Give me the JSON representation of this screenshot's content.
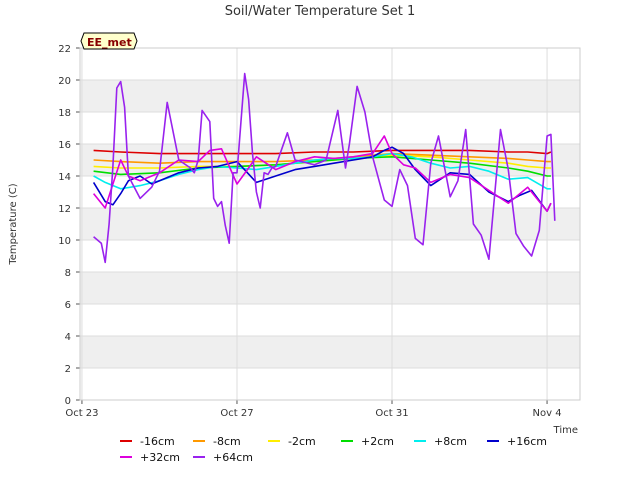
{
  "chart_data": {
    "type": "line",
    "title": "Soil/Water Temperature Set 1",
    "xlabel": "Time",
    "ylabel": "Temperature (C)",
    "ylim": [
      0,
      22
    ],
    "xlim": [
      -0.05,
      12.85
    ],
    "yticks": [
      0,
      2,
      4,
      6,
      8,
      10,
      12,
      14,
      16,
      18,
      20,
      22
    ],
    "xticks": [
      {
        "x": 0,
        "label": "Oct 23"
      },
      {
        "x": 4,
        "label": "Oct 27"
      },
      {
        "x": 8,
        "label": "Oct 31"
      },
      {
        "x": 12,
        "label": "Nov 4"
      }
    ],
    "grid": true,
    "background_bands": "alternating light gray",
    "legend_position": "bottom",
    "station_label": "EE_met",
    "series": [
      {
        "name": "-16cm",
        "color": "#dd0000",
        "x": [
          0.3,
          1.0,
          2.0,
          3.0,
          4.0,
          5.0,
          6.0,
          7.0,
          8.0,
          9.0,
          10.0,
          11.0,
          11.5,
          12.0,
          12.1
        ],
        "values": [
          15.6,
          15.5,
          15.4,
          15.4,
          15.4,
          15.4,
          15.5,
          15.5,
          15.6,
          15.6,
          15.6,
          15.5,
          15.5,
          15.4,
          15.5
        ]
      },
      {
        "name": "-8cm",
        "color": "#ff9900",
        "x": [
          0.3,
          1.0,
          2.0,
          3.0,
          4.0,
          5.0,
          6.0,
          7.0,
          8.0,
          9.0,
          10.0,
          11.0,
          11.5,
          12.0,
          12.1
        ],
        "values": [
          15.0,
          14.9,
          14.8,
          14.9,
          14.9,
          14.9,
          15.0,
          15.2,
          15.4,
          15.3,
          15.2,
          15.1,
          15.0,
          14.9,
          14.9
        ]
      },
      {
        "name": "-2cm",
        "color": "#ffee00",
        "x": [
          0.3,
          1.0,
          2.0,
          3.0,
          4.0,
          5.0,
          6.0,
          7.0,
          8.0,
          9.0,
          10.0,
          11.0,
          11.5,
          12.0,
          12.1
        ],
        "values": [
          14.6,
          14.5,
          14.5,
          14.6,
          14.6,
          14.7,
          14.9,
          15.1,
          15.3,
          15.2,
          15.0,
          14.8,
          14.6,
          14.5,
          14.5
        ]
      },
      {
        "name": "+2cm",
        "color": "#00dd00",
        "x": [
          0.3,
          1.0,
          2.0,
          3.0,
          4.0,
          5.0,
          6.0,
          7.0,
          8.0,
          9.0,
          10.0,
          11.0,
          11.5,
          12.0,
          12.1
        ],
        "values": [
          14.3,
          14.1,
          14.2,
          14.5,
          14.6,
          14.7,
          14.9,
          15.1,
          15.2,
          15.0,
          14.8,
          14.5,
          14.3,
          14.0,
          14.0
        ]
      },
      {
        "name": "+8cm",
        "color": "#00eeee",
        "x": [
          0.3,
          0.6,
          1.0,
          1.5,
          2.0,
          2.5,
          3.0,
          3.5,
          4.0,
          4.5,
          5.0,
          5.5,
          6.0,
          6.5,
          7.0,
          7.5,
          8.0,
          8.5,
          9.0,
          9.5,
          10.0,
          10.5,
          11.0,
          11.5,
          12.0,
          12.1
        ],
        "values": [
          14.0,
          13.6,
          13.2,
          13.4,
          13.7,
          14.1,
          14.4,
          14.6,
          14.5,
          14.4,
          14.6,
          14.8,
          15.0,
          15.1,
          15.1,
          15.2,
          15.4,
          15.2,
          14.8,
          14.5,
          14.6,
          14.3,
          13.8,
          13.9,
          13.2,
          13.2
        ]
      },
      {
        "name": "+16cm",
        "color": "#0000cc",
        "x": [
          0.3,
          0.6,
          0.8,
          1.0,
          1.2,
          1.5,
          1.8,
          2.0,
          2.5,
          3.0,
          3.5,
          4.0,
          4.5,
          5.0,
          5.5,
          6.0,
          6.5,
          7.0,
          7.5,
          7.8,
          8.0,
          8.3,
          8.6,
          9.0,
          9.5,
          10.0,
          10.5,
          11.0,
          11.3,
          11.6,
          12.0,
          12.1
        ],
        "values": [
          13.6,
          12.4,
          12.2,
          12.9,
          13.7,
          14.0,
          13.5,
          13.7,
          14.2,
          14.5,
          14.6,
          14.9,
          13.6,
          14.0,
          14.4,
          14.6,
          14.8,
          15.0,
          15.2,
          15.6,
          15.8,
          15.4,
          14.4,
          13.4,
          14.2,
          14.1,
          13.0,
          12.4,
          12.8,
          13.1,
          11.8,
          12.3
        ]
      },
      {
        "name": "+32cm",
        "color": "#dd00dd",
        "x": [
          0.3,
          0.6,
          0.8,
          1.0,
          1.2,
          1.5,
          1.8,
          2.0,
          2.5,
          3.0,
          3.3,
          3.6,
          4.0,
          4.3,
          4.5,
          5.0,
          5.5,
          6.0,
          6.5,
          7.0,
          7.5,
          7.8,
          8.0,
          8.3,
          8.6,
          9.0,
          9.5,
          10.0,
          10.5,
          11.0,
          11.5,
          12.0,
          12.1
        ],
        "values": [
          12.9,
          12.0,
          13.5,
          15.0,
          14.0,
          13.7,
          14.0,
          14.2,
          15.0,
          14.9,
          15.6,
          15.7,
          13.5,
          14.5,
          15.2,
          14.4,
          14.9,
          15.2,
          15.1,
          15.2,
          15.4,
          16.5,
          15.4,
          14.7,
          14.5,
          13.6,
          14.1,
          13.9,
          13.1,
          12.3,
          13.3,
          11.8,
          12.3
        ]
      },
      {
        "name": "+64cm",
        "color": "#9922ee",
        "x": [
          0.3,
          0.5,
          0.6,
          0.7,
          0.8,
          0.9,
          1.0,
          1.1,
          1.2,
          1.5,
          1.8,
          2.0,
          2.2,
          2.5,
          2.8,
          2.9,
          3.0,
          3.1,
          3.3,
          3.4,
          3.5,
          3.6,
          3.7,
          3.8,
          3.9,
          4.0,
          4.2,
          4.3,
          4.4,
          4.5,
          4.6,
          4.7,
          4.8,
          4.9,
          5.0,
          5.3,
          5.5,
          6.0,
          6.3,
          6.6,
          6.8,
          6.9,
          7.1,
          7.3,
          7.5,
          7.8,
          8.0,
          8.2,
          8.4,
          8.6,
          8.8,
          9.0,
          9.2,
          9.5,
          9.7,
          9.9,
          10.1,
          10.3,
          10.5,
          10.8,
          11.0,
          11.2,
          11.4,
          11.6,
          11.8,
          12.0,
          12.1,
          12.2
        ],
        "values": [
          10.2,
          9.8,
          8.6,
          11.0,
          14.6,
          19.5,
          19.9,
          18.3,
          14.0,
          12.6,
          13.3,
          14.3,
          18.6,
          15.0,
          14.5,
          14.2,
          15.0,
          18.1,
          17.4,
          12.6,
          12.1,
          12.4,
          10.9,
          9.8,
          14.2,
          14.2,
          20.4,
          18.8,
          15.4,
          13.0,
          12.0,
          14.2,
          14.1,
          14.5,
          14.6,
          16.7,
          15.0,
          14.7,
          15.0,
          18.1,
          14.5,
          16.0,
          19.6,
          18.0,
          15.2,
          12.5,
          12.1,
          14.4,
          13.4,
          10.1,
          9.7,
          14.8,
          16.5,
          12.7,
          13.7,
          16.9,
          11.0,
          10.3,
          8.8,
          16.9,
          14.4,
          10.4,
          9.6,
          9.0,
          10.6,
          16.5,
          16.6,
          11.2
        ]
      }
    ]
  }
}
